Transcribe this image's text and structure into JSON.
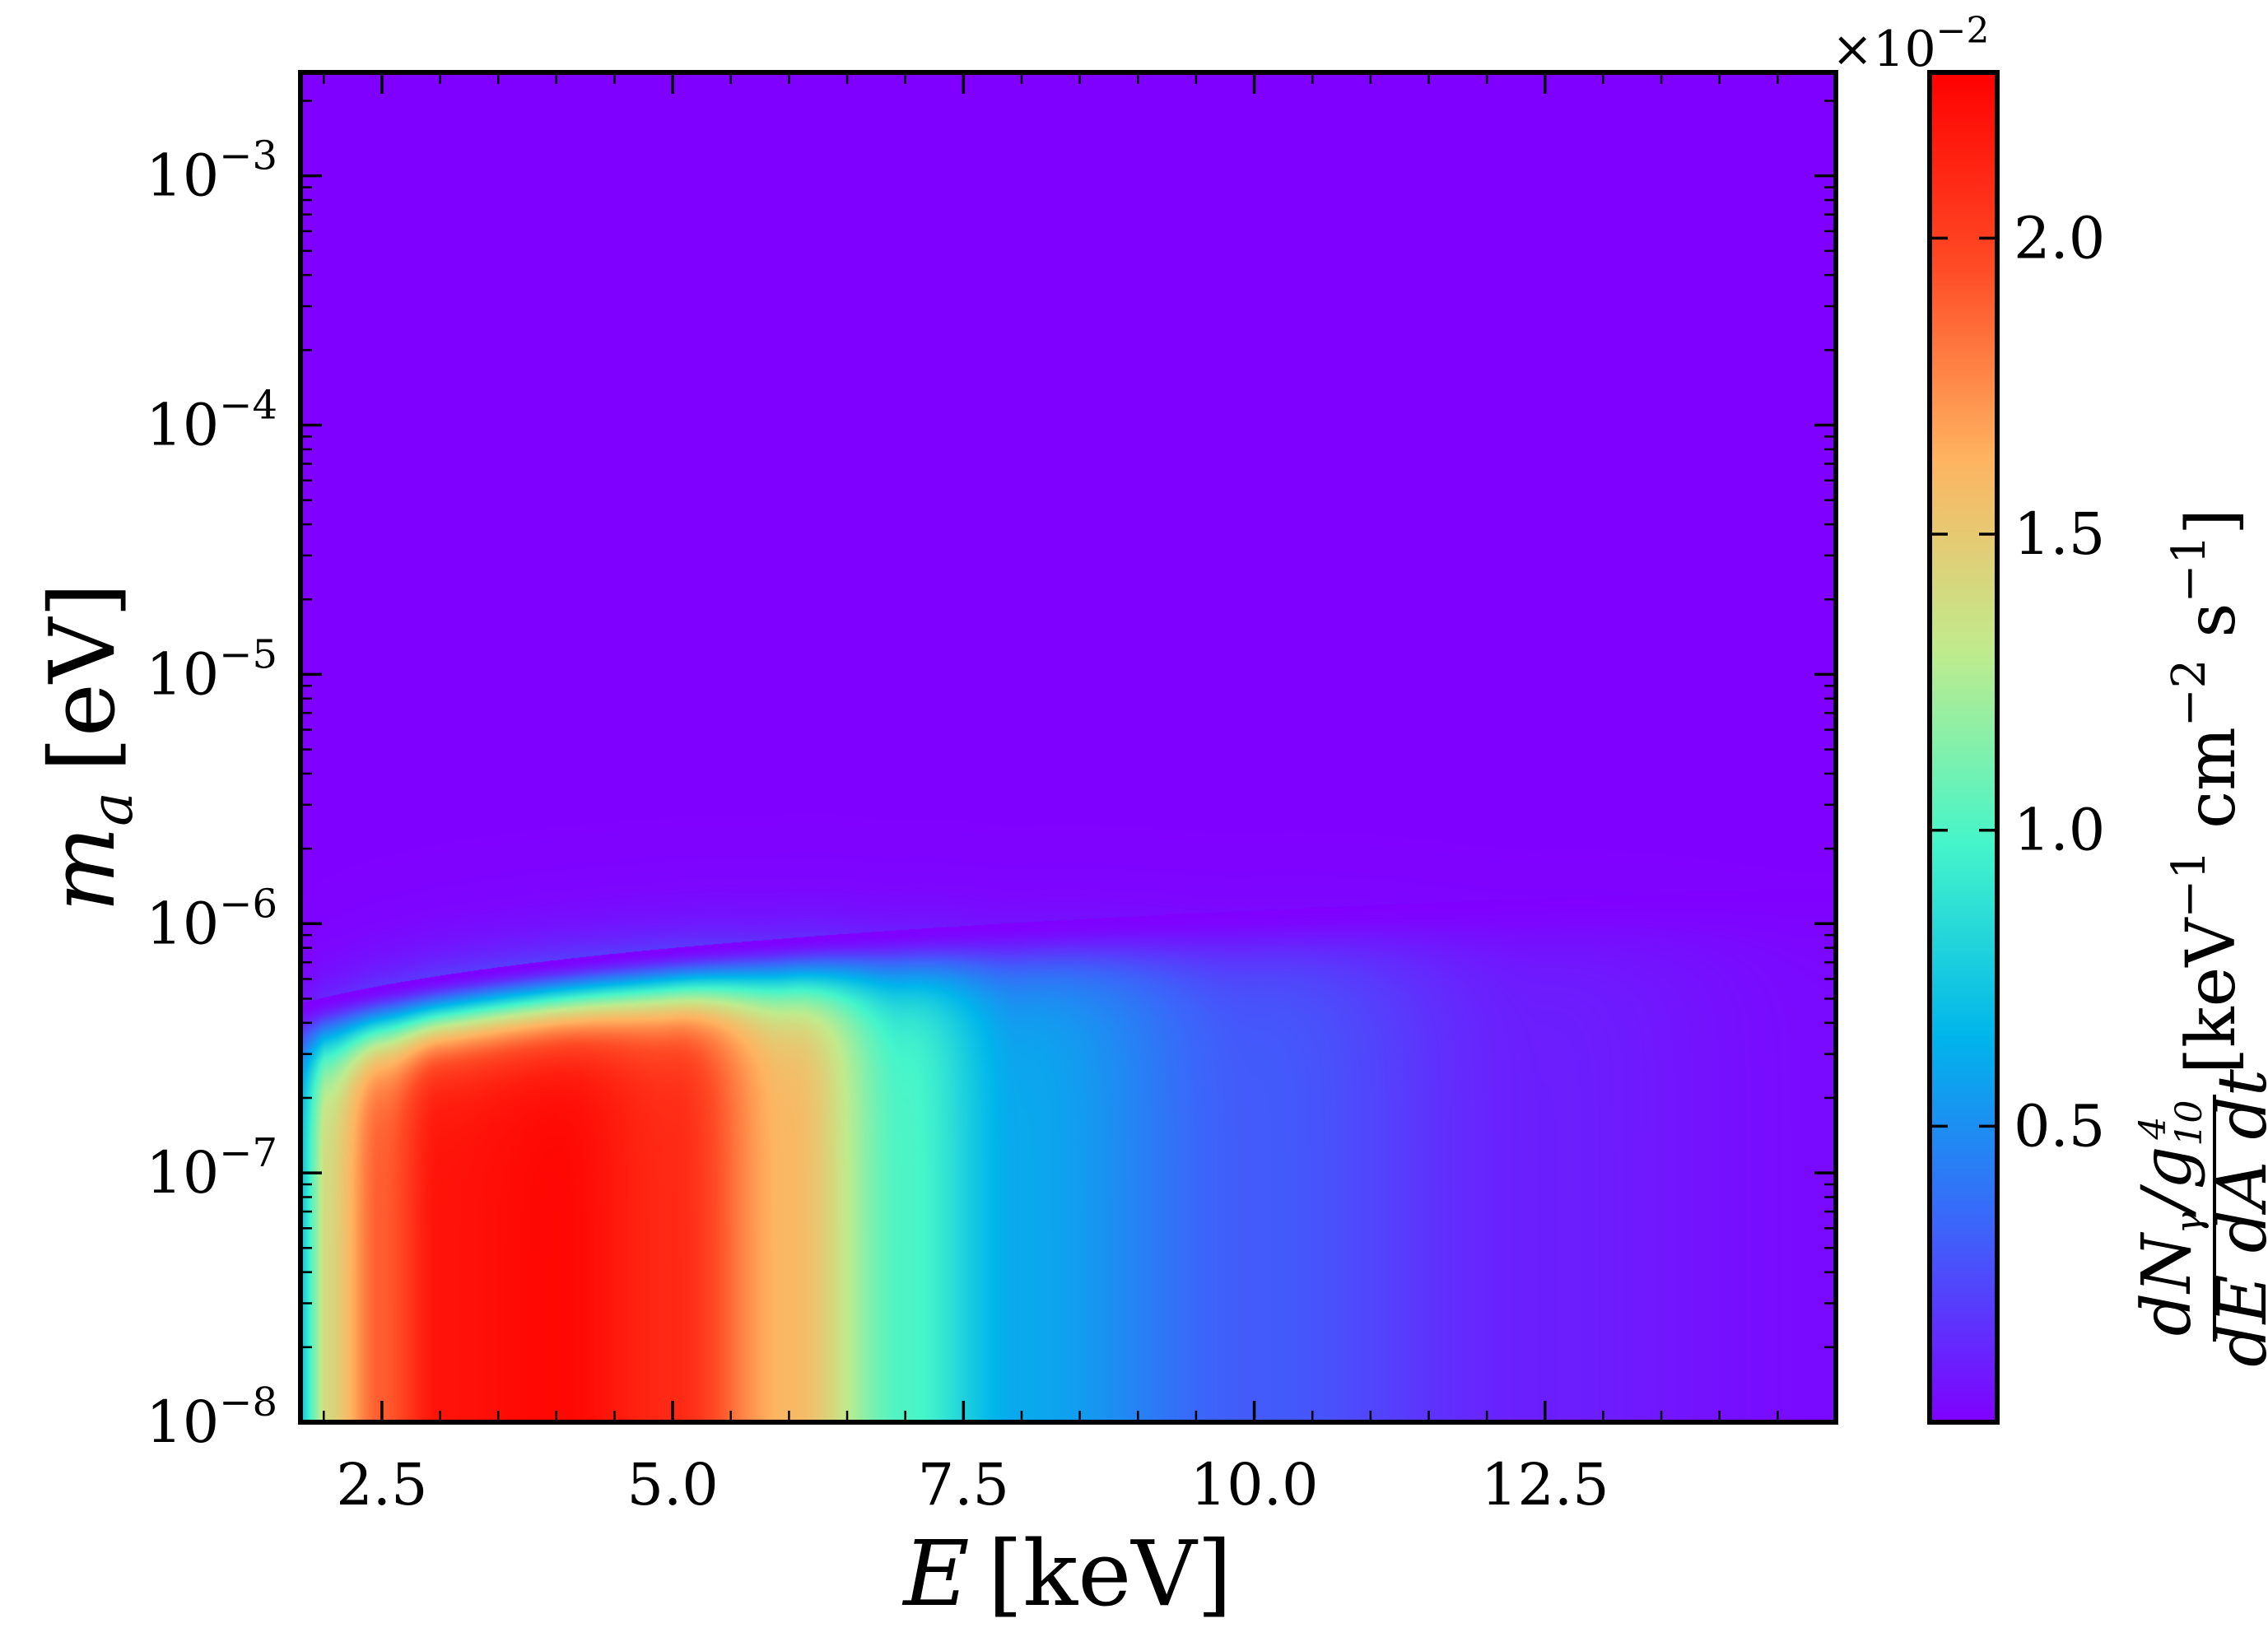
{
  "chart_data": {
    "type": "heatmap",
    "title": "",
    "xlabel": {
      "symbol": "E",
      "unit": "[keV]"
    },
    "ylabel": {
      "symbol": "m",
      "subscript": "a",
      "unit": "[eV]"
    },
    "x_ticks": [
      "2.5",
      "5.0",
      "7.5",
      "10.0",
      "12.5"
    ],
    "x_tick_values": [
      2.5,
      5.0,
      7.5,
      10.0,
      12.5
    ],
    "xlim": [
      1.8,
      15.0
    ],
    "y_scale": "log",
    "y_ticks": [
      {
        "base": "10",
        "exp": "−8",
        "value": 1e-08
      },
      {
        "base": "10",
        "exp": "−7",
        "value": 1e-07
      },
      {
        "base": "10",
        "exp": "−6",
        "value": 1e-06
      },
      {
        "base": "10",
        "exp": "−5",
        "value": 1e-05
      },
      {
        "base": "10",
        "exp": "−4",
        "value": 0.0001
      },
      {
        "base": "10",
        "exp": "−3",
        "value": 0.001
      }
    ],
    "ylim": [
      1e-08,
      0.0026
    ],
    "colormap": "rainbow",
    "colormap_stops": [
      "#8000ff",
      "#3d63fa",
      "#00b5eb",
      "#45f5ca",
      "#c0eb8d",
      "#ffb360",
      "#ff4a25",
      "#ff0000"
    ],
    "colorbar": {
      "ticks": [
        "0.5",
        "1.0",
        "1.5",
        "2.0"
      ],
      "tick_values": [
        0.5,
        1.0,
        1.5,
        2.0
      ],
      "range": [
        0.0,
        2.28
      ],
      "multiplier": {
        "base": "×10",
        "exp": "−2"
      },
      "label": {
        "numerator": "dN",
        "numerator_sub": "γ",
        "slash": "/g",
        "g_sub": "10",
        "g_sup": "4",
        "denominator": "dE dA dt",
        "units_open": "[keV",
        "units_exp1": "−1",
        "units_mid": " cm",
        "units_exp2": "−2",
        "units_mid2": " s",
        "units_exp3": "−1",
        "units_close": "]"
      }
    },
    "grid": false,
    "legend": "none",
    "data_description": {
      "peak_energy_keV": 4.0,
      "peak_value_e-2": 2.25,
      "suppression_onset_mass_eV": 6e-07,
      "low_mass_profile_e-2": [
        {
          "E": 2.0,
          "v": 1.4
        },
        {
          "E": 2.5,
          "v": 1.9
        },
        {
          "E": 3.0,
          "v": 2.2
        },
        {
          "E": 4.0,
          "v": 2.25
        },
        {
          "E": 5.0,
          "v": 2.1
        },
        {
          "E": 6.0,
          "v": 1.6
        },
        {
          "E": 7.0,
          "v": 1.0
        },
        {
          "E": 8.0,
          "v": 0.6
        },
        {
          "E": 10.0,
          "v": 0.3
        },
        {
          "E": 12.5,
          "v": 0.1
        },
        {
          "E": 15.0,
          "v": 0.03
        }
      ]
    }
  }
}
